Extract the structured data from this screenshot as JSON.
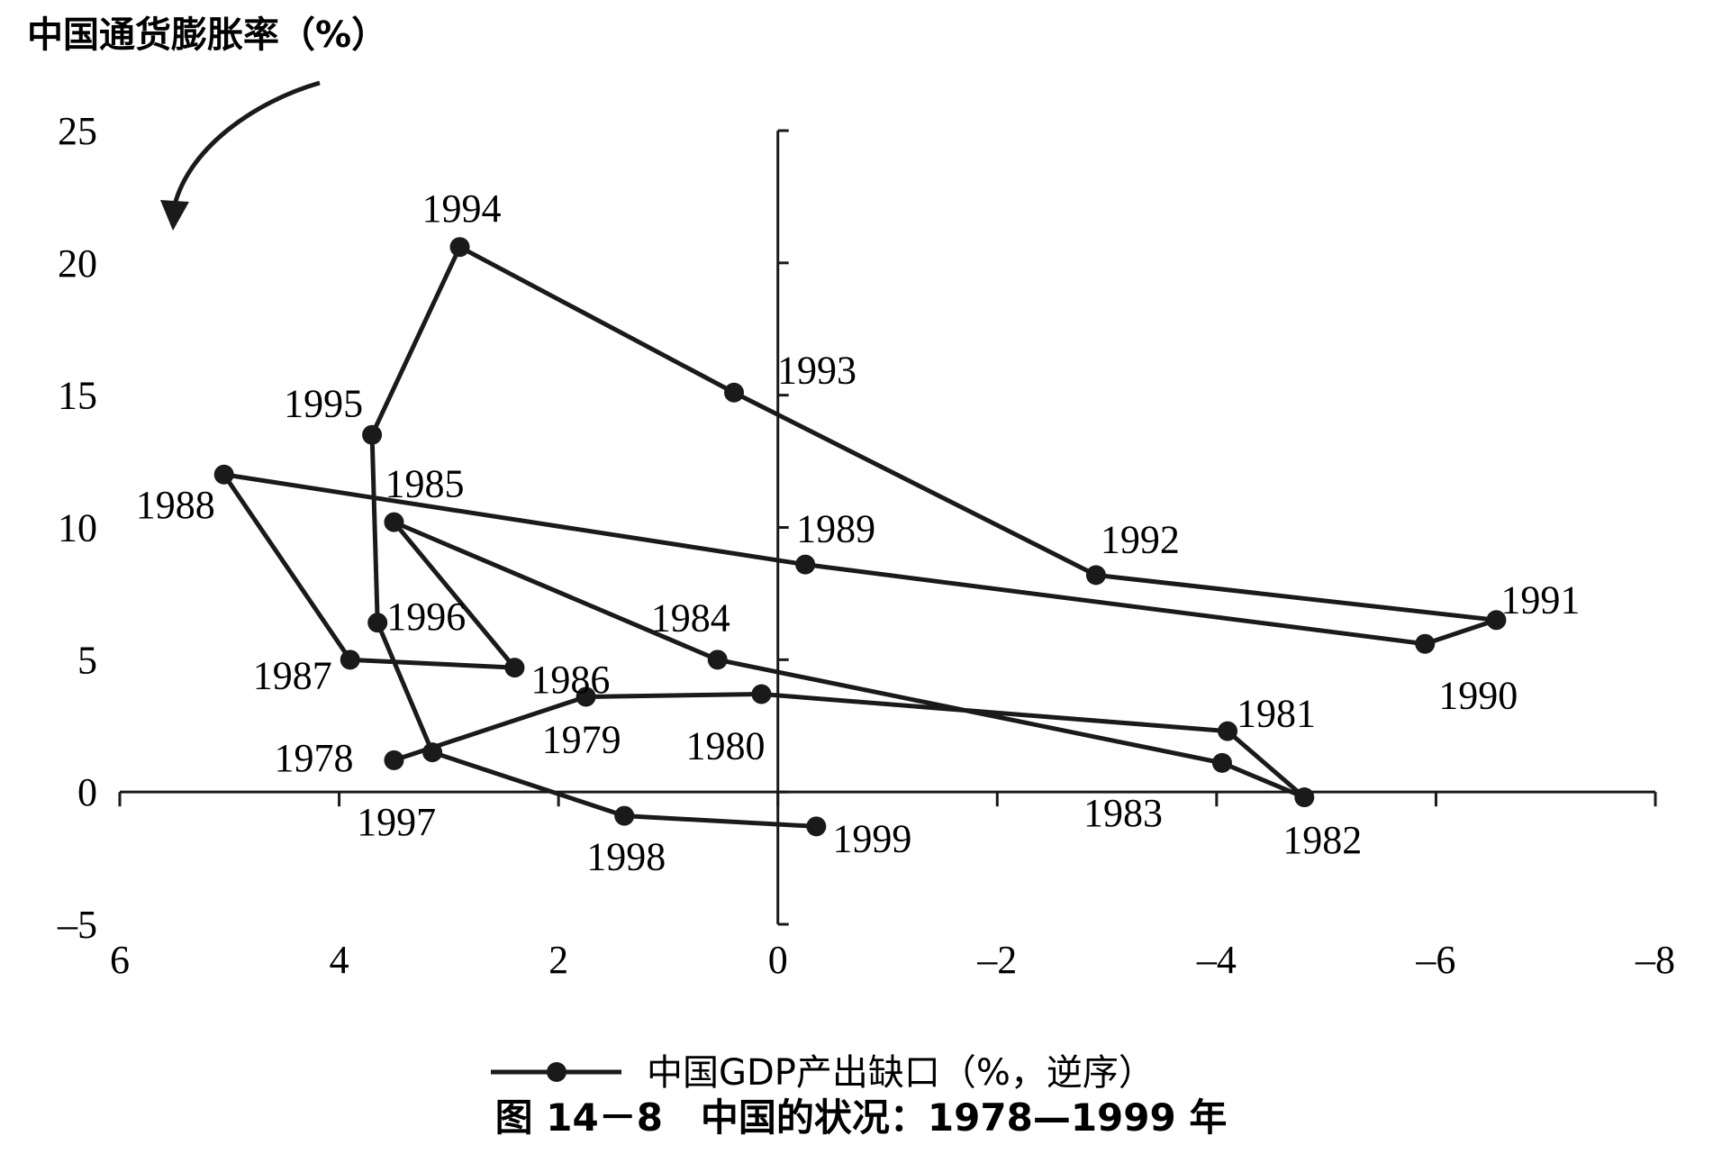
{
  "chart_data": {
    "type": "line",
    "ylabel": "中国通货膨胀率（%）",
    "xlabel": "",
    "xlim": [
      6,
      -8
    ],
    "ylim": [
      -5,
      25
    ],
    "x_reversed": true,
    "x_ticks": [
      {
        "v": 6,
        "label": "6"
      },
      {
        "v": 4,
        "label": "4"
      },
      {
        "v": 2,
        "label": "2"
      },
      {
        "v": 0,
        "label": "0"
      },
      {
        "v": -2,
        "label": "–2"
      },
      {
        "v": -4,
        "label": "–4"
      },
      {
        "v": -6,
        "label": "–6"
      },
      {
        "v": -8,
        "label": "–8"
      }
    ],
    "y_ticks": [
      {
        "v": 25,
        "label": "25"
      },
      {
        "v": 20,
        "label": "20"
      },
      {
        "v": 15,
        "label": "15"
      },
      {
        "v": 10,
        "label": "10"
      },
      {
        "v": 5,
        "label": "5"
      },
      {
        "v": 0,
        "label": "0"
      },
      {
        "v": -5,
        "label": "–5"
      }
    ],
    "series": [
      {
        "name": "中国GDP产出缺口（%，逆序）",
        "color": "#1a1a1a",
        "points": [
          {
            "label": "1978",
            "x": 3.5,
            "y": 1.2
          },
          {
            "label": "1979",
            "x": 1.75,
            "y": 3.6
          },
          {
            "label": "1980",
            "x": 0.15,
            "y": 3.7
          },
          {
            "label": "1981",
            "x": -4.1,
            "y": 2.3
          },
          {
            "label": "1982",
            "x": -4.8,
            "y": -0.2
          },
          {
            "label": "1983",
            "x": -4.05,
            "y": 1.1
          },
          {
            "label": "1984",
            "x": 0.55,
            "y": 5.0
          },
          {
            "label": "1985",
            "x": 3.5,
            "y": 10.2
          },
          {
            "label": "1986",
            "x": 2.4,
            "y": 4.7
          },
          {
            "label": "1987",
            "x": 3.9,
            "y": 5.0
          },
          {
            "label": "1988",
            "x": 5.05,
            "y": 12.0
          },
          {
            "label": "1989",
            "x": -0.25,
            "y": 8.6
          },
          {
            "label": "1990",
            "x": -5.9,
            "y": 5.6
          },
          {
            "label": "1991",
            "x": -6.55,
            "y": 6.5
          },
          {
            "label": "1992",
            "x": -2.9,
            "y": 8.2
          },
          {
            "label": "1993",
            "x": 0.4,
            "y": 15.1
          },
          {
            "label": "1994",
            "x": 2.9,
            "y": 20.6
          },
          {
            "label": "1995",
            "x": 3.7,
            "y": 13.5
          },
          {
            "label": "1996",
            "x": 3.65,
            "y": 6.4
          },
          {
            "label": "1997",
            "x": 3.15,
            "y": 1.5
          },
          {
            "label": "1998",
            "x": 1.4,
            "y": -0.9
          },
          {
            "label": "1999",
            "x": -0.35,
            "y": -1.3
          }
        ]
      }
    ],
    "legend_placement": "bottom-center",
    "grid": false,
    "caption": "图 14－8　中国的状况：1978—1999 年"
  }
}
